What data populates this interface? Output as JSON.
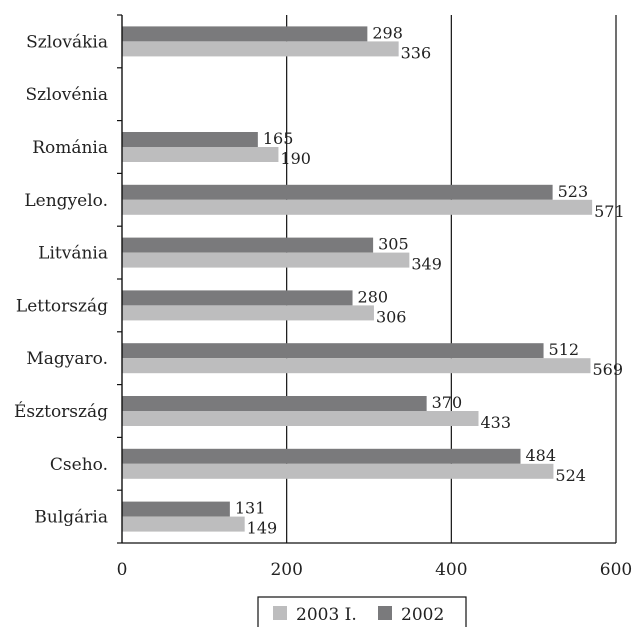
{
  "chart_data": {
    "type": "bar",
    "orientation": "horizontal",
    "categories": [
      "Bulgária",
      "Cseho.",
      "Észtország",
      "Magyaro.",
      "Lettország",
      "Litvánia",
      "Lengyelo.",
      "Románia",
      "Szlovénia",
      "Szlovákia"
    ],
    "series": [
      {
        "name": "2003 I.",
        "color": "#bdbdbe",
        "values": [
          149,
          524,
          433,
          569,
          306,
          349,
          571,
          190,
          null,
          336
        ]
      },
      {
        "name": "2002",
        "color": "#7a7a7c",
        "values": [
          131,
          484,
          370,
          512,
          280,
          305,
          523,
          165,
          null,
          298
        ]
      }
    ],
    "xlim": [
      0,
      600
    ],
    "xticks": [
      0,
      200,
      400,
      600
    ],
    "grid": true,
    "legend_position": "bottom",
    "title": "",
    "xlabel": "",
    "ylabel": ""
  }
}
